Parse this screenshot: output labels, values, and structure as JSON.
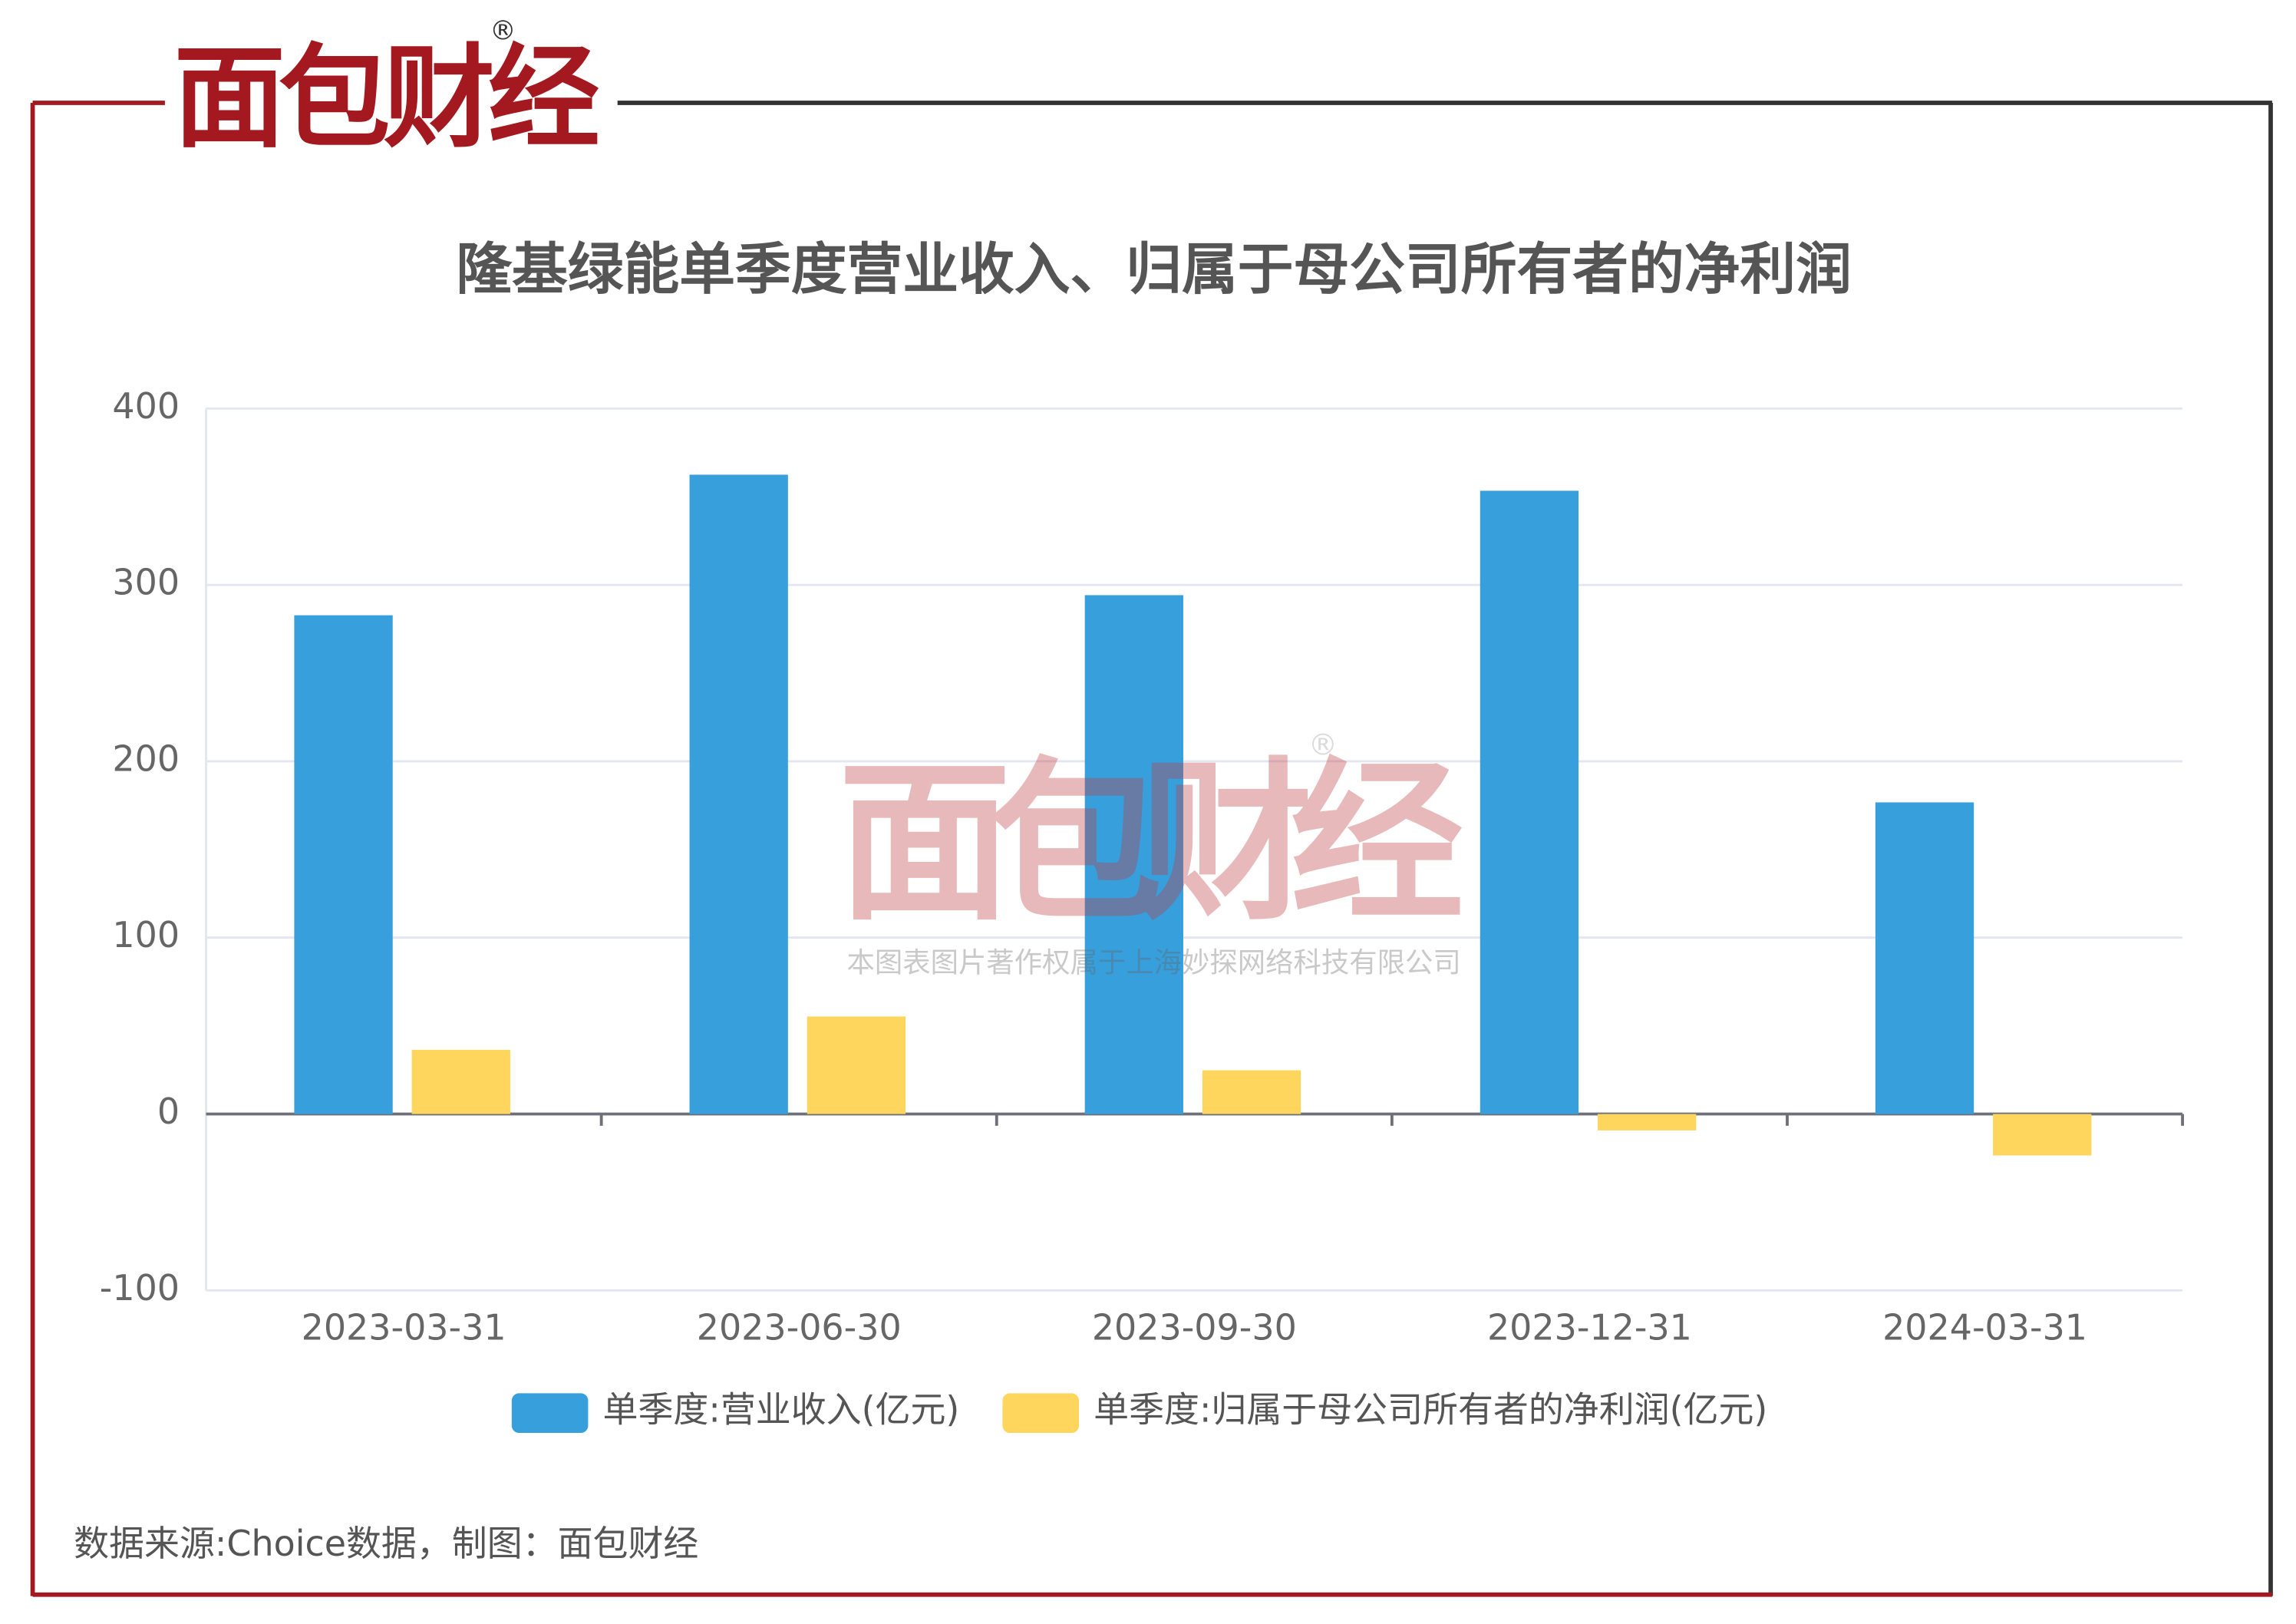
{
  "logo": "面包财经",
  "registered": "®",
  "watermark": {
    "logo": "面包财经",
    "registered": "®",
    "copyright": "本图表图片著作权属于上海妙探网络科技有限公司"
  },
  "source": "数据来源:Choice数据，制图：面包财经",
  "chart_data": {
    "type": "bar",
    "title": "隆基绿能单季度营业收入、归属于母公司所有者的净利润",
    "categories": [
      "2023-03-31",
      "2023-06-30",
      "2023-09-30",
      "2023-12-31",
      "2024-03-31"
    ],
    "series": [
      {
        "name": "单季度:营业收入(亿元)",
        "color": "#379fdb",
        "values": [
          282.8,
          362.5,
          294.2,
          353.4,
          176.7
        ]
      },
      {
        "name": "单季度:归属于母公司所有者的净利润(亿元)",
        "color": "#fed65d",
        "values": [
          36.4,
          55.3,
          24.8,
          -9.3,
          -23.5
        ]
      }
    ],
    "ylim": [
      -100,
      400
    ],
    "yticks": [
      -100,
      0,
      100,
      200,
      300,
      400
    ],
    "grid": true,
    "legend": "bottom"
  }
}
